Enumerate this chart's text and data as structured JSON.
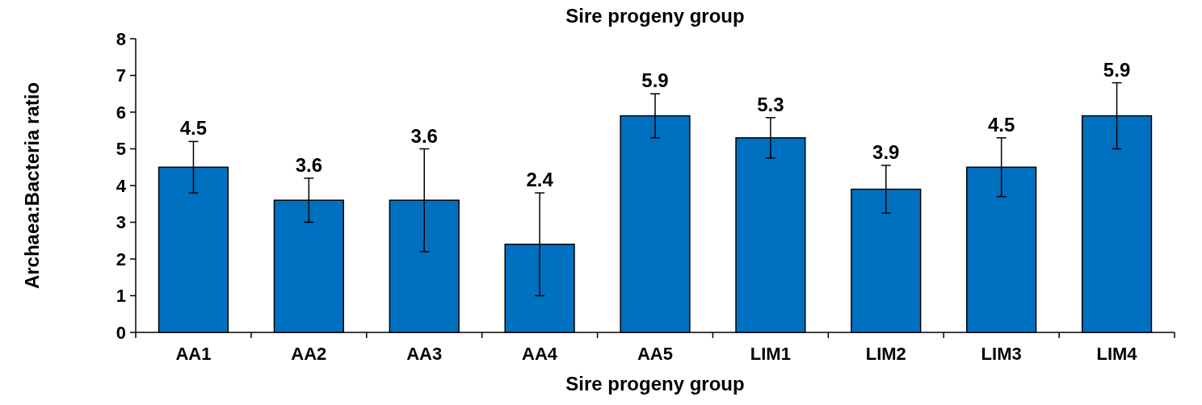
{
  "chart_data": {
    "type": "bar",
    "title": "Sire progeny group",
    "xlabel": "Sire progeny group",
    "ylabel": "Archaea:Bacteria ratio",
    "categories": [
      "AA1",
      "AA2",
      "AA3",
      "AA4",
      "AA5",
      "LIM1",
      "LIM2",
      "LIM3",
      "LIM4"
    ],
    "values": [
      4.5,
      3.6,
      3.6,
      2.4,
      5.9,
      5.3,
      3.9,
      4.5,
      5.9
    ],
    "errors": [
      0.7,
      0.6,
      1.4,
      1.4,
      0.6,
      0.55,
      0.65,
      0.8,
      0.9
    ],
    "color": "#0070c0",
    "ylim": [
      0,
      8
    ],
    "yticks": [
      0,
      1,
      2,
      3,
      4,
      5,
      6,
      7,
      8
    ],
    "data_labels": true,
    "grid": false
  }
}
